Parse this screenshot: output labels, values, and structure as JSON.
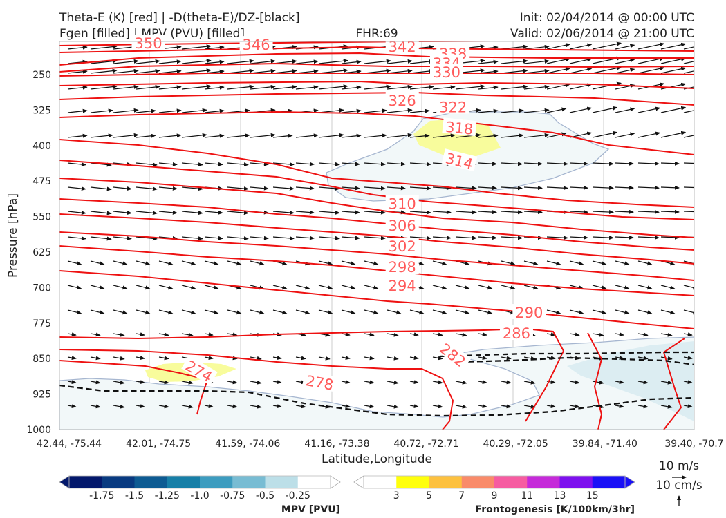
{
  "header": {
    "title_left_1": "Theta-E (K) [red] | -D(theta-E)/DZ-[black]",
    "title_left_2": "Fgen [filled] | MPV (PVU) [filled]",
    "fhr": "FHR:69",
    "init": "Init: 02/04/2014 @ 00:00 UTC",
    "valid": "Valid: 02/06/2014 @ 21:00 UTC"
  },
  "colors": {
    "theta_e": "#ee1111",
    "dthetae_dz": "#111111",
    "mpv_shade": "#eef6f8",
    "mpv_shade_dark": "#d9eaf0",
    "mpv_outline": "#a6b6d0",
    "fgen_3": "#f8fc9c"
  },
  "chart_data": {
    "type": "cross-section",
    "xlabel": "Latitude,Longitude",
    "ylabel": "Pressure [hPa]",
    "x_ticks": [
      "42.44, -75.44",
      "42.01, -74.75",
      "41.59, -74.06",
      "41.16, -73.38",
      "40.72, -72.71",
      "40.29, -72.05",
      "39.84, -71.40",
      "39.40, -70.7"
    ],
    "y_ticks": [
      250,
      325,
      400,
      475,
      550,
      625,
      700,
      775,
      850,
      925,
      1000
    ],
    "y_range": [
      180,
      1000
    ],
    "theta_e_contour_labels": [
      {
        "label": "350",
        "x": 0.14,
        "p": 183
      },
      {
        "label": "346",
        "x": 0.31,
        "p": 186
      },
      {
        "label": "342",
        "x": 0.54,
        "p": 190
      },
      {
        "label": "338",
        "x": 0.62,
        "p": 205
      },
      {
        "label": "334",
        "x": 0.61,
        "p": 225
      },
      {
        "label": "330",
        "x": 0.61,
        "p": 244
      },
      {
        "label": "326",
        "x": 0.54,
        "p": 304
      },
      {
        "label": "322",
        "x": 0.62,
        "p": 318
      },
      {
        "label": "318",
        "x": 0.63,
        "p": 362
      },
      {
        "label": "314",
        "x": 0.63,
        "p": 432
      },
      {
        "label": "310",
        "x": 0.54,
        "p": 522
      },
      {
        "label": "306",
        "x": 0.54,
        "p": 568
      },
      {
        "label": "302",
        "x": 0.54,
        "p": 612
      },
      {
        "label": "298",
        "x": 0.54,
        "p": 656
      },
      {
        "label": "294",
        "x": 0.54,
        "p": 695
      },
      {
        "label": "290",
        "x": 0.74,
        "p": 752
      },
      {
        "label": "286",
        "x": 0.72,
        "p": 796
      },
      {
        "label": "282",
        "x": 0.62,
        "p": 842
      },
      {
        "label": "278",
        "x": 0.41,
        "p": 900
      },
      {
        "label": "274",
        "x": 0.22,
        "p": 876
      }
    ],
    "vector_key": {
      "wind": "10 m/s",
      "vertical": "10 cm/s"
    },
    "colorbars": [
      {
        "title": "MPV [PVU]",
        "ticks": [
          "-1.75",
          "-1.5",
          "-1.25",
          "-1.0",
          "-0.75",
          "-0.5",
          "-0.25"
        ],
        "colors": [
          "#03186b",
          "#083a80",
          "#0d5b92",
          "#177fa7",
          "#3d9cbf",
          "#78bcd3",
          "#bcdfe8",
          "#ffffff"
        ]
      },
      {
        "title": "Frontogenesis [K/100km/3hr]",
        "ticks": [
          "3",
          "5",
          "7",
          "9",
          "11",
          "13",
          "15"
        ],
        "colors": [
          "#ffffff",
          "#ffff0c",
          "#fdc13f",
          "#f98b6a",
          "#f65ca1",
          "#c52ad9",
          "#7d10ee",
          "#1a10f6"
        ]
      }
    ]
  }
}
